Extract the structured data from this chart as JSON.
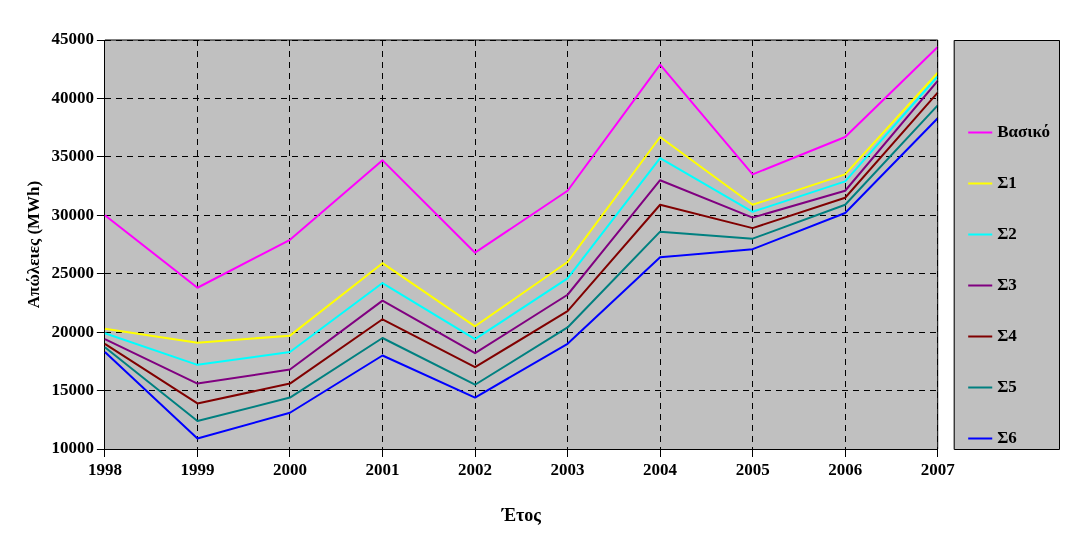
{
  "chart_data": {
    "type": "line",
    "xlabel": "Έτος",
    "ylabel": "Απώλειες (MWh)",
    "categories": [
      "1998",
      "1999",
      "2000",
      "2001",
      "2002",
      "2003",
      "2004",
      "2005",
      "2006",
      "2007"
    ],
    "series": [
      {
        "name": "Βασικό",
        "color": "#ff00ff",
        "values": [
          30000,
          23800,
          27900,
          34700,
          26800,
          32100,
          42900,
          33500,
          36700,
          44400
        ]
      },
      {
        "name": "Σ1",
        "color": "#ffff00",
        "values": [
          20300,
          19100,
          19700,
          25900,
          20500,
          26000,
          36700,
          30900,
          33500,
          42200
        ]
      },
      {
        "name": "Σ2",
        "color": "#00ffff",
        "values": [
          19900,
          17200,
          18300,
          24200,
          19400,
          24600,
          34900,
          30300,
          32900,
          41900
        ]
      },
      {
        "name": "Σ3",
        "color": "#800080",
        "values": [
          19400,
          15600,
          16800,
          22700,
          18200,
          23200,
          33000,
          29800,
          32100,
          41500
        ]
      },
      {
        "name": "Σ4",
        "color": "#800000",
        "values": [
          19000,
          13900,
          15600,
          21100,
          17000,
          21800,
          30900,
          28900,
          31500,
          40500
        ]
      },
      {
        "name": "Σ5",
        "color": "#008080",
        "values": [
          18700,
          12400,
          14400,
          19500,
          15500,
          20400,
          28600,
          28000,
          30900,
          39400
        ]
      },
      {
        "name": "Σ6",
        "color": "#0000ff",
        "values": [
          18300,
          10900,
          13100,
          18000,
          14400,
          19000,
          26400,
          27100,
          30200,
          38300
        ]
      }
    ],
    "ylim": [
      10000,
      45000
    ],
    "yticks": [
      10000,
      15000,
      20000,
      25000,
      30000,
      35000,
      40000,
      45000
    ],
    "grid": true,
    "legend": "right",
    "marker": "none",
    "line_style": "solid"
  }
}
